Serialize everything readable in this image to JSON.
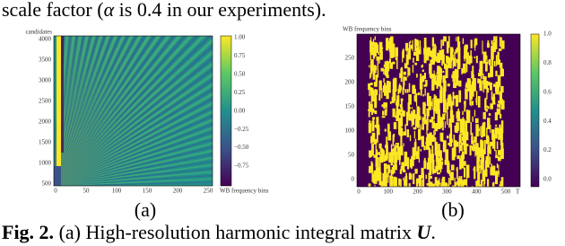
{
  "header": {
    "text_before": "scale factor (",
    "symbol": "α",
    "text_after": " is 0.4 in our experiments)."
  },
  "panels": [
    {
      "label": "(a)",
      "y_axis_label": "candidates",
      "x_axis_label": "WB frequency bins",
      "y_ticks": [
        "4000",
        "3500",
        "3000",
        "2500",
        "2000",
        "1500",
        "1000",
        "500"
      ],
      "x_ticks": [
        "0",
        "50",
        "100",
        "150",
        "200",
        "250"
      ],
      "colorbar_ticks": [
        "1.00",
        "0.75",
        "0.50",
        "0.25",
        "0.00",
        "−0.25",
        "−0.50",
        "−0.75"
      ]
    },
    {
      "label": "(b)",
      "y_axis_label": "WB frequency bins",
      "x_axis_label": "T",
      "y_ticks": [
        "250",
        "200",
        "150",
        "100",
        "50",
        "0"
      ],
      "x_ticks": [
        "0",
        "100",
        "200",
        "300",
        "400",
        "500"
      ],
      "colorbar_ticks": [
        "1.0",
        "0.8",
        "0.6",
        "0.4",
        "0.2",
        "0.0"
      ]
    }
  ],
  "caption": {
    "label": "Fig. 2.",
    "text": " (a) High-resolution harmonic integral matrix ",
    "symbol": "U",
    "end": "."
  }
}
